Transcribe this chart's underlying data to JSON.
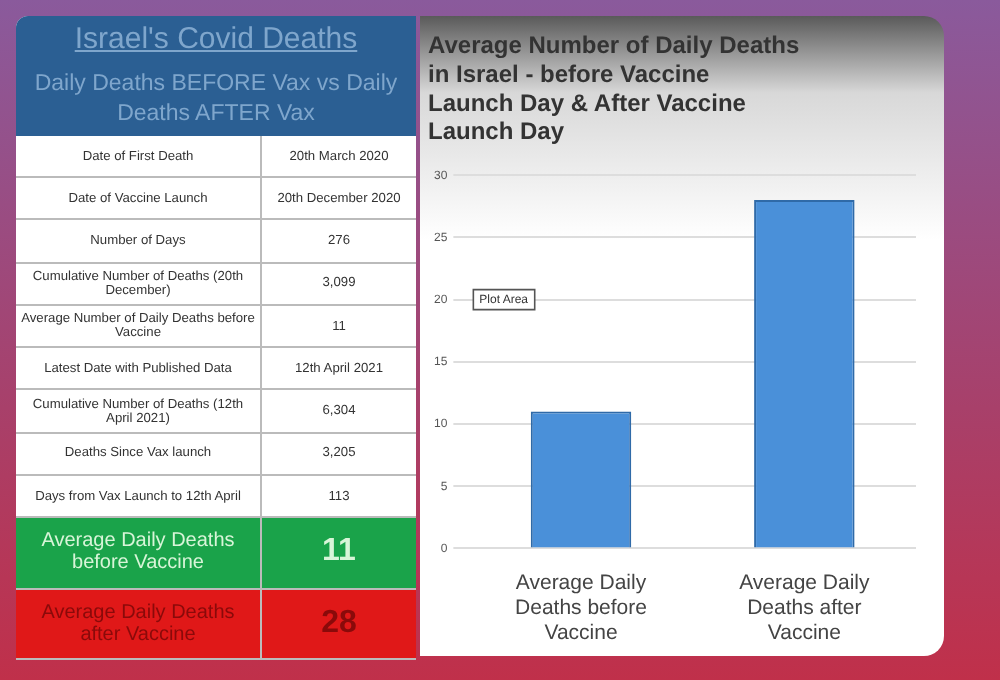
{
  "chart_data": [
    {
      "type": "other",
      "title": "Israel's Covid Deaths",
      "subtitle": "Daily Deaths BEFORE Vax vs Daily Deaths AFTER Vax",
      "annotations": [
        "Date of First Death",
        "20th March 2020",
        "Date of Vaccine Launch",
        "20th December 2020",
        "Number of Days",
        "276",
        "Cumulative Number of Deaths (20th December)",
        "3,099",
        "Average Number of Daily Deaths before Vaccine",
        "11",
        "Latest Date with Published Data",
        "12th April 2021",
        "Cumulative Number of Deaths (12th April 2021)",
        "6,304",
        "Deaths Since Vax launch",
        "3,205",
        "Days from Vax Launch to 12th April",
        "113",
        "Average Daily Deaths before Vaccine",
        "11",
        "Average Daily Deaths after Vaccine",
        "28"
      ]
    },
    {
      "type": "bar",
      "title": "Average Number of Daily Deaths in Israel - before Vaccine Launch Day & After Vaccine Launch Day",
      "categories": [
        "Average Daily Deaths before Vaccine",
        "Average Daily Deaths after Vaccine"
      ],
      "values": [
        11,
        28
      ],
      "color": "#4a90d9",
      "ylim": [
        0,
        30
      ],
      "yticks": [
        0,
        5,
        10,
        15,
        20,
        25,
        30
      ],
      "grid": "y",
      "annotations": [
        "Plot Area"
      ]
    }
  ]
}
